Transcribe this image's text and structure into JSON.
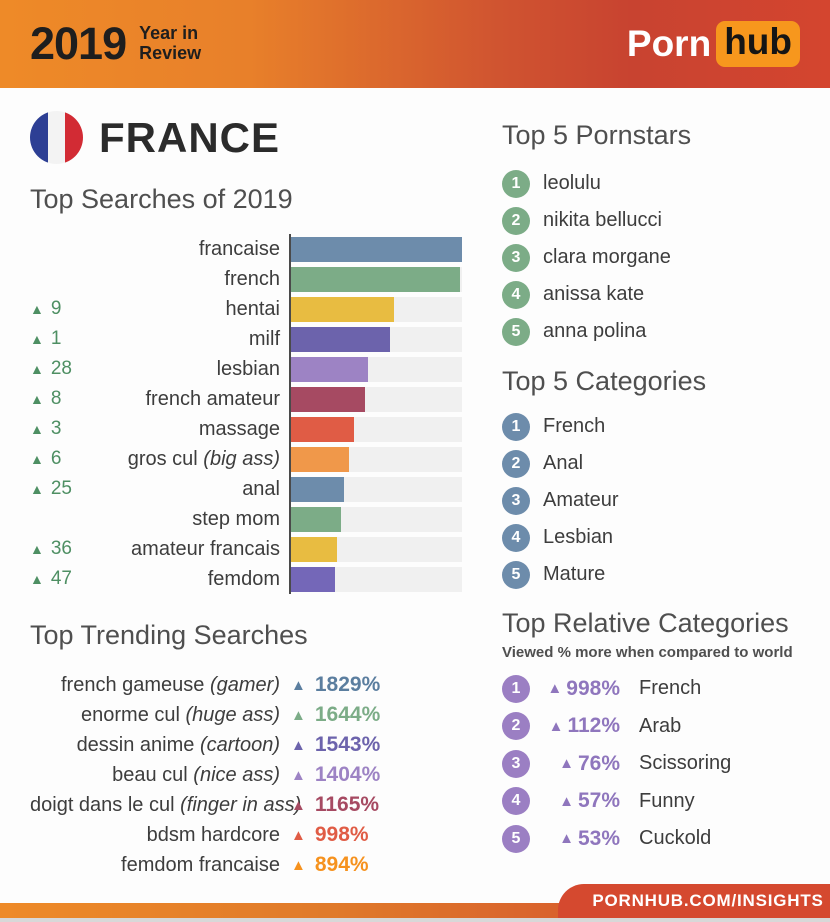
{
  "header": {
    "year": "2019",
    "tagline_line1": "Year in",
    "tagline_line2": "Review",
    "logo_left": "Porn",
    "logo_right": "hub",
    "logo_badge_color": "#f7971d"
  },
  "country": {
    "name": "FRANCE",
    "flag_colors": [
      "#2d3f94",
      "#f3f3f3",
      "#d22b34"
    ]
  },
  "chart_data": {
    "type": "bar",
    "orientation": "horizontal",
    "title": "Top Searches of 2019",
    "xlabel": "",
    "ylabel": "",
    "xlim": [
      0,
      100
    ],
    "grid": false,
    "value_note": "bar lengths estimated as percent of longest bar",
    "rank_change_color": "#4e8f63",
    "track_color": "#f0f0f0",
    "rows": [
      {
        "term": "francaise",
        "note": "",
        "rank_change": null,
        "value": 100,
        "color": "#6d8cab"
      },
      {
        "term": "french",
        "note": "",
        "rank_change": null,
        "value": 99,
        "color": "#7cac87"
      },
      {
        "term": "hentai",
        "note": "",
        "rank_change": 9,
        "value": 60,
        "color": "#e8bc41"
      },
      {
        "term": "milf",
        "note": "",
        "rank_change": 1,
        "value": 58,
        "color": "#6c63ac"
      },
      {
        "term": "lesbian",
        "note": "",
        "rank_change": 28,
        "value": 45,
        "color": "#9d83c4"
      },
      {
        "term": "french amateur",
        "note": "",
        "rank_change": 8,
        "value": 43,
        "color": "#a64a62"
      },
      {
        "term": "massage",
        "note": "",
        "rank_change": 3,
        "value": 37,
        "color": "#e05c45"
      },
      {
        "term": "gros cul",
        "note": "(big ass)",
        "rank_change": 6,
        "value": 34,
        "color": "#f0984a"
      },
      {
        "term": "anal",
        "note": "",
        "rank_change": 25,
        "value": 31,
        "color": "#6d8cab"
      },
      {
        "term": "step mom",
        "note": "",
        "rank_change": null,
        "value": 29,
        "color": "#7cac87"
      },
      {
        "term": "amateur francais",
        "note": "",
        "rank_change": 36,
        "value": 27,
        "color": "#e8bc41"
      },
      {
        "term": "femdom",
        "note": "",
        "rank_change": 47,
        "value": 26,
        "color": "#7467b8"
      }
    ]
  },
  "trending": {
    "title": "Top Trending Searches",
    "items": [
      {
        "label": "french gameuse",
        "note": "(gamer)",
        "pct": "1829%",
        "color": "#5b7e9f"
      },
      {
        "label": "enorme cul",
        "note": "(huge ass)",
        "pct": "1644%",
        "color": "#7cac87"
      },
      {
        "label": "dessin anime",
        "note": "(cartoon)",
        "pct": "1543%",
        "color": "#6c63ac"
      },
      {
        "label": "beau cul",
        "note": "(nice ass)",
        "pct": "1404%",
        "color": "#9d83c4"
      },
      {
        "label": "doigt dans le cul",
        "note": "(finger in ass)",
        "pct": "1165%",
        "color": "#a64a62"
      },
      {
        "label": "bdsm hardcore",
        "note": "",
        "pct": "998%",
        "color": "#e05c45"
      },
      {
        "label": "femdom francaise",
        "note": "",
        "pct": "894%",
        "color": "#f6921e"
      }
    ]
  },
  "pornstars": {
    "title": "Top 5 Pornstars",
    "badge_color": "#7cac87",
    "items": [
      {
        "rank": "1",
        "name": "leolulu"
      },
      {
        "rank": "2",
        "name": "nikita bellucci"
      },
      {
        "rank": "3",
        "name": "clara morgane"
      },
      {
        "rank": "4",
        "name": "anissa kate"
      },
      {
        "rank": "5",
        "name": "anna polina"
      }
    ]
  },
  "categories": {
    "title": "Top 5 Categories",
    "badge_color": "#6d8cab",
    "items": [
      {
        "rank": "1",
        "name": "French"
      },
      {
        "rank": "2",
        "name": "Anal"
      },
      {
        "rank": "3",
        "name": "Amateur"
      },
      {
        "rank": "4",
        "name": "Lesbian"
      },
      {
        "rank": "5",
        "name": "Mature"
      }
    ]
  },
  "relative": {
    "title": "Top Relative Categories",
    "subtitle": "Viewed % more when compared to world",
    "badge_color": "#9b7fc3",
    "pct_color": "#8f76bd",
    "items": [
      {
        "rank": "1",
        "pct": "998%",
        "name": "French"
      },
      {
        "rank": "2",
        "pct": "112%",
        "name": "Arab"
      },
      {
        "rank": "3",
        "pct": "76%",
        "name": "Scissoring"
      },
      {
        "rank": "4",
        "pct": "57%",
        "name": "Funny"
      },
      {
        "rank": "5",
        "pct": "53%",
        "name": "Cuckold"
      }
    ]
  },
  "footer": {
    "url": "PORNHUB.COM/INSIGHTS"
  }
}
